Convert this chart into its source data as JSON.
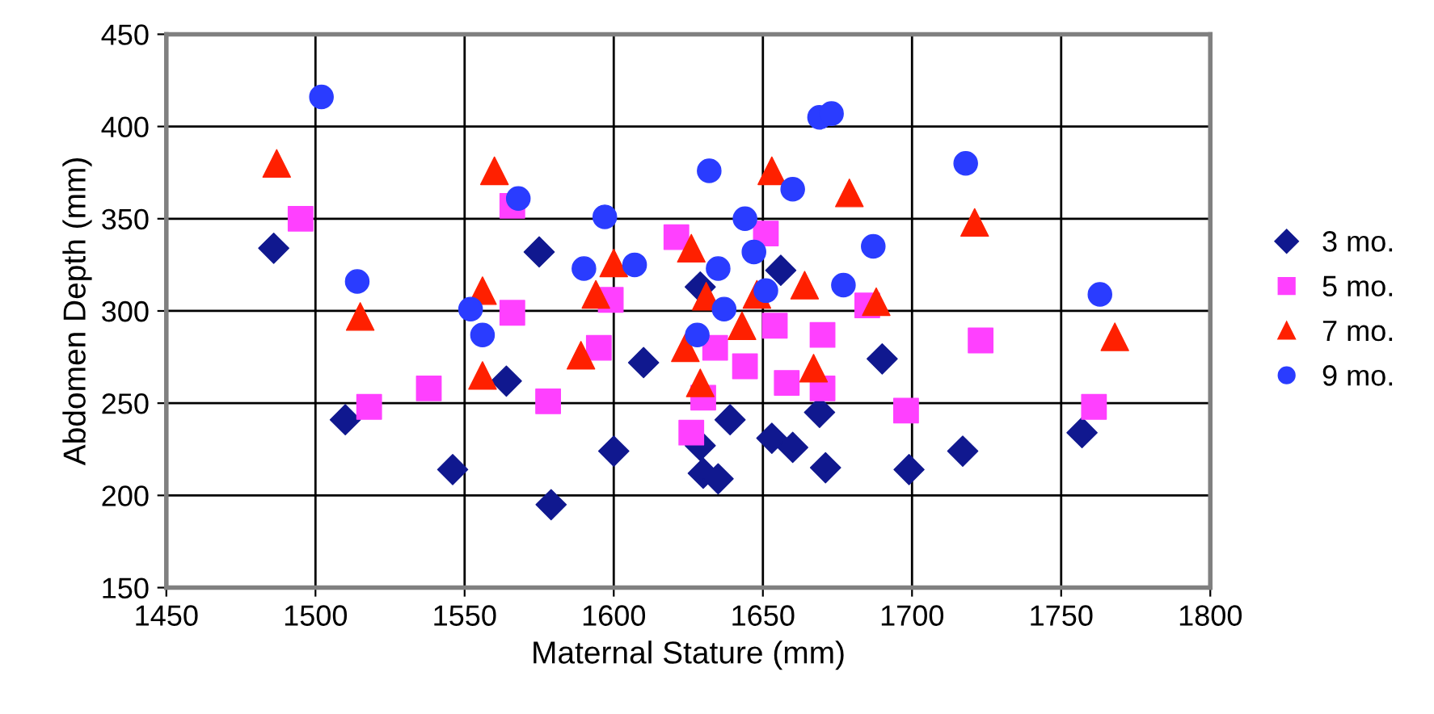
{
  "chart_data": {
    "type": "scatter",
    "xlabel": "Maternal Stature (mm)",
    "ylabel": "Abdomen Depth (mm)",
    "xlim": [
      1450,
      1800
    ],
    "xticks": [
      1450,
      1500,
      1550,
      1600,
      1650,
      1700,
      1750,
      1800
    ],
    "ylim": [
      150,
      450
    ],
    "yticks": [
      150,
      200,
      250,
      300,
      350,
      400,
      450
    ],
    "grid": true,
    "legend": "right",
    "series": [
      {
        "name": "3 mo.",
        "color": "#10188f",
        "marker": "diamond",
        "x": [
          1486,
          1510,
          1546,
          1564,
          1575,
          1579,
          1610,
          1600,
          1629,
          1639,
          1629,
          1630,
          1635,
          1656,
          1653,
          1660,
          1669,
          1671,
          1690,
          1699,
          1717,
          1757
        ],
        "values": [
          334,
          241,
          214,
          262,
          332,
          195,
          272,
          224,
          313,
          241,
          227,
          212,
          209,
          322,
          231,
          226,
          245,
          215,
          274,
          214,
          224,
          234
        ]
      },
      {
        "name": "5 mo.",
        "color": "#ff40ff",
        "marker": "square",
        "x": [
          1495,
          1518,
          1538,
          1566,
          1566,
          1578,
          1599,
          1595,
          1621,
          1630,
          1626,
          1634,
          1644,
          1651,
          1654,
          1658,
          1670,
          1670,
          1685,
          1723,
          1698,
          1761
        ],
        "values": [
          350,
          248,
          258,
          357,
          299,
          251,
          306,
          280,
          340,
          253,
          234,
          280,
          270,
          342,
          292,
          261,
          287,
          258,
          303,
          284,
          246,
          248
        ]
      },
      {
        "name": "7 mo.",
        "color": "#ff2000",
        "marker": "triangle",
        "x": [
          1487,
          1515,
          1556,
          1556,
          1560,
          1600,
          1594,
          1589,
          1626,
          1631,
          1624,
          1629,
          1643,
          1648,
          1653,
          1664,
          1667,
          1679,
          1688,
          1721,
          1768
        ],
        "values": [
          380,
          297,
          311,
          265,
          376,
          326,
          309,
          276,
          334,
          308,
          280,
          261,
          292,
          309,
          376,
          314,
          269,
          364,
          305,
          348,
          286
        ]
      },
      {
        "name": "9 mo.",
        "color": "#2a3cff",
        "marker": "circle",
        "x": [
          1502,
          1514,
          1552,
          1556,
          1568,
          1597,
          1590,
          1607,
          1632,
          1644,
          1635,
          1637,
          1628,
          1647,
          1651,
          1660,
          1669,
          1673,
          1677,
          1687,
          1718,
          1763
        ],
        "values": [
          416,
          316,
          301,
          287,
          361,
          351,
          323,
          325,
          376,
          350,
          323,
          301,
          287,
          332,
          311,
          366,
          405,
          407,
          314,
          335,
          380,
          309
        ]
      }
    ]
  }
}
